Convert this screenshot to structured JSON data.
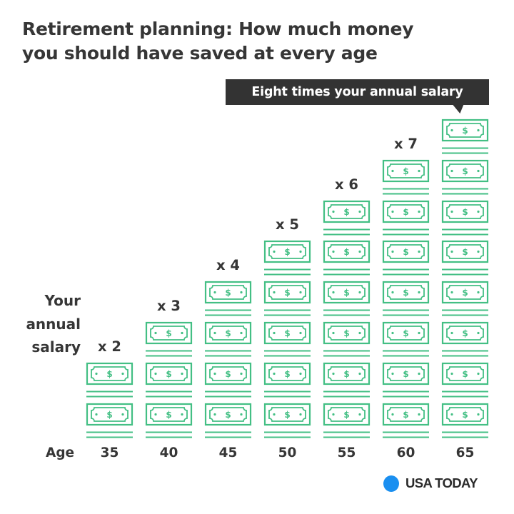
{
  "title": {
    "line1": "Retirement planning: How much money",
    "line2": "you should have saved at every age"
  },
  "callout": {
    "text": "Eight times your annual salary"
  },
  "y_label": {
    "line1": "Your",
    "line2": "annual",
    "line3": "salary"
  },
  "x_axis": {
    "title": "Age"
  },
  "colors": {
    "bill": "#43bf84",
    "text": "#363636",
    "callout_bg": "#333333",
    "logo_dot": "#1a8ff0"
  },
  "icon": {
    "unit": "dollar-bill-icon",
    "symbol": "$"
  },
  "logo": {
    "text": "USA TODAY"
  },
  "chart_data": {
    "type": "bar",
    "title": "Retirement planning: How much money you should have saved at every age",
    "xlabel": "Age",
    "ylabel": "Your annual salary",
    "unit": "stack of dollar bills, each = one year's salary",
    "categories": [
      "35",
      "40",
      "45",
      "50",
      "55",
      "60",
      "65"
    ],
    "values": [
      2,
      3,
      4,
      5,
      6,
      7,
      8
    ],
    "labels": [
      "x 2",
      "x 3",
      "x 4",
      "x 5",
      "x 6",
      "x 7",
      "Eight times your annual salary"
    ],
    "annotations": [
      {
        "category": "65",
        "text": "Eight times your annual salary"
      }
    ],
    "ylim": [
      0,
      8
    ],
    "grid": false,
    "legend": "none"
  }
}
